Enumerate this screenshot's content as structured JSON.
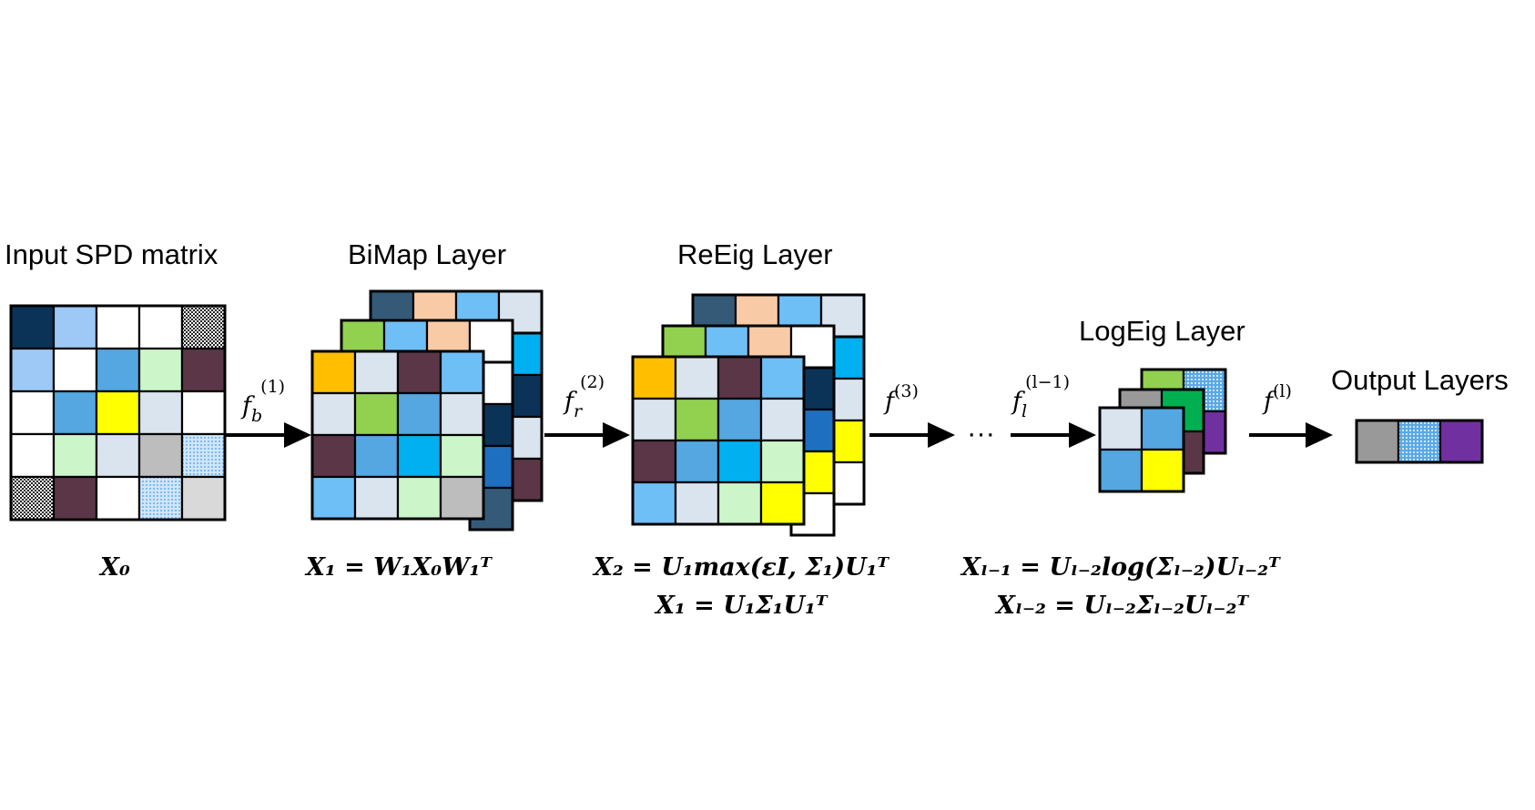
{
  "labels": {
    "input": "Input SPD matrix",
    "bimap": "BiMap Layer",
    "reeig": "ReEig Layer",
    "logeig": "LogEig Layer",
    "output": "Output Layers",
    "dots": "···"
  },
  "arrows": [
    {
      "id": "fb1",
      "base": "f",
      "sub": "b",
      "sup": "(1)"
    },
    {
      "id": "fr2",
      "base": "f",
      "sub": "r",
      "sup": "(2)"
    },
    {
      "id": "f3",
      "base": "f",
      "sub": "",
      "sup": "(3)"
    },
    {
      "id": "fl",
      "base": "f",
      "sub": "l",
      "sup": "(l−1)"
    },
    {
      "id": "fL",
      "base": "f",
      "sub": "",
      "sup": "(l)"
    }
  ],
  "equations": {
    "x0": "X₀",
    "x1": "X₁ = W₁X₀W₁ᵀ",
    "x2_line1": "X₂ = U₁max(εI, Σ₁)U₁ᵀ",
    "x2_line2": "X₁ = U₁Σ₁U₁ᵀ",
    "xl_line1": "Xₗ₋₁ = Uₗ₋₂log(Σₗ₋₂)Uₗ₋₂ᵀ",
    "xl_line2": "Xₗ₋₂ = Uₗ₋₂Σₗ₋₂Uₗ₋₂ᵀ"
  },
  "palette": {
    "navy": "#0b3358",
    "light_blue": "#9ec8f5",
    "white": "#ffffff",
    "mid_blue": "#54a7e0",
    "mint": "#ccf5c9",
    "plum": "#5a3646",
    "yellow": "#ffff00",
    "pale_gray_blue": "#d9e4ef",
    "gray": "#bdbdbd",
    "light_gray": "#d9d9d9",
    "orange": "#ffbf00",
    "green": "#92d050",
    "cyan": "#00b0f0",
    "sky": "#6fbff7",
    "steel": "#345a78",
    "peach": "#f8cba6",
    "dark_gray": "#999999",
    "purple": "#7030a0",
    "bright_green": "#00b050",
    "royal_blue": "#1f6fc0"
  },
  "matrices": {
    "input": [
      [
        "navy",
        "light_blue",
        "white",
        "white",
        "dots_dark"
      ],
      [
        "light_blue",
        "white",
        "mid_blue",
        "mint",
        "plum"
      ],
      [
        "white",
        "mid_blue",
        "yellow",
        "pale_gray_blue",
        "white"
      ],
      [
        "white",
        "mint",
        "pale_gray_blue",
        "gray",
        "dots_light"
      ],
      [
        "dots_dark",
        "plum",
        "white",
        "dots_light",
        "light_gray"
      ]
    ],
    "layer_front": [
      [
        "orange",
        "pale_gray_blue",
        "plum",
        "sky"
      ],
      [
        "pale_gray_blue",
        "green",
        "mid_blue",
        "pale_gray_blue"
      ],
      [
        "plum",
        "mid_blue",
        "cyan",
        "mint"
      ],
      [
        "sky",
        "pale_gray_blue",
        "mint",
        "gray"
      ]
    ],
    "layer_mid": [
      [
        "green",
        "sky",
        "peach",
        "white"
      ],
      [
        "white",
        "white",
        "white",
        "white"
      ],
      [
        "white",
        "white",
        "white",
        "white"
      ],
      [
        "white",
        "white",
        "white",
        "white"
      ]
    ],
    "layer_back": [
      [
        "steel",
        "peach",
        "sky",
        "pale_gray_blue"
      ],
      [
        "white",
        "white",
        "white",
        "white"
      ],
      [
        "white",
        "white",
        "white",
        "white"
      ],
      [
        "white",
        "white",
        "white",
        "white"
      ]
    ],
    "bimap_right_strip": [
      "cyan",
      "navy",
      "pale_gray_blue",
      "plum"
    ],
    "bimap_mid_strip": [
      "white",
      "navy",
      "royal_blue",
      "steel"
    ],
    "reeig_front": [
      [
        "orange",
        "pale_gray_blue",
        "plum",
        "sky"
      ],
      [
        "pale_gray_blue",
        "green",
        "mid_blue",
        "pale_gray_blue"
      ],
      [
        "plum",
        "mid_blue",
        "cyan",
        "mint"
      ],
      [
        "sky",
        "pale_gray_blue",
        "mint",
        "yellow"
      ]
    ],
    "reeig_right_strip": [
      "cyan",
      "pale_gray_blue",
      "yellow",
      "white"
    ],
    "reeig_mid_strip": [
      "navy",
      "royal_blue",
      "yellow",
      "white"
    ],
    "logeig_front": [
      [
        "pale_gray_blue",
        "mid_blue"
      ],
      [
        "mid_blue",
        "yellow"
      ]
    ],
    "logeig_mid": [
      [
        "dark_gray",
        "bright_green"
      ],
      [
        "plum",
        "plum"
      ]
    ],
    "logeig_back": [
      [
        "green",
        "dots_blue"
      ],
      [
        "purple",
        "purple"
      ]
    ],
    "output": [
      "dark_gray",
      "dots_blue",
      "purple"
    ]
  }
}
